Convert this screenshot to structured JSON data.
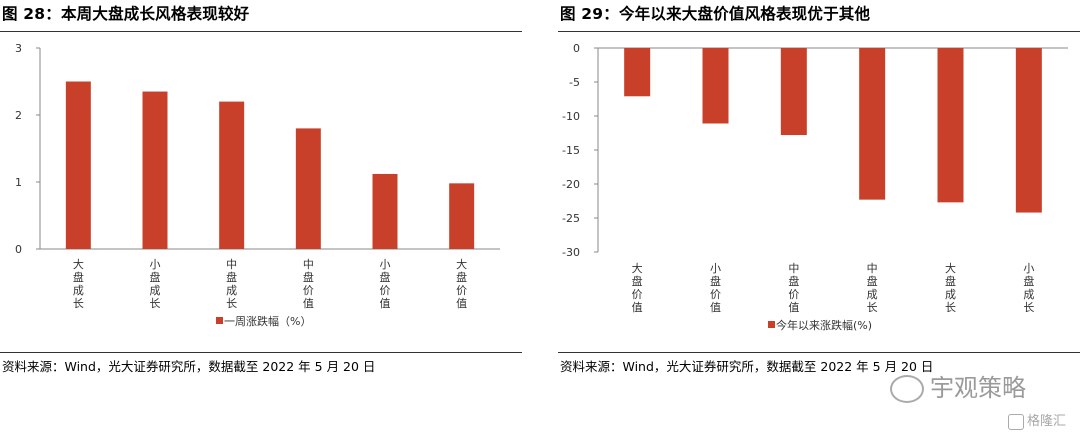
{
  "charts": [
    {
      "title": "图 28：本周大盘成长风格表现较好",
      "source": "资料来源：Wind，光大证券研究所，数据截至 2022 年 5 月 20 日",
      "bar_color": "#c9402a",
      "chart_data": {
        "type": "bar",
        "categories": [
          "大盘成长",
          "小盘成长",
          "中盘成长",
          "中盘价值",
          "小盘价值",
          "大盘价值"
        ],
        "series": [
          {
            "name": "一周涨跌幅（%）",
            "values": [
              2.5,
              2.35,
              2.2,
              1.8,
              1.12,
              0.98
            ]
          }
        ],
        "ylim": [
          0,
          3
        ],
        "yticks": [
          0,
          1,
          2,
          3
        ],
        "legend": "bottom"
      }
    },
    {
      "title": "图 29：今年以来大盘价值风格表现优于其他",
      "source": "资料来源：Wind，光大证券研究所，数据截至 2022 年 5 月 20 日",
      "bar_color": "#c9402a",
      "chart_data": {
        "type": "bar",
        "categories": [
          "大盘价值",
          "小盘价值",
          "中盘价值",
          "中盘成长",
          "大盘成长",
          "小盘成长"
        ],
        "series": [
          {
            "name": "今年以来涨跌幅(%)",
            "values": [
              -7.1,
              -11.1,
              -12.8,
              -22.3,
              -22.7,
              -24.2
            ]
          }
        ],
        "ylim": [
          -30,
          0
        ],
        "yticks": [
          0,
          -5,
          -10,
          -15,
          -20,
          -25,
          -30
        ],
        "legend": "bottom"
      }
    }
  ],
  "watermark": {
    "main": "宇观策略",
    "sub": "格隆汇"
  }
}
